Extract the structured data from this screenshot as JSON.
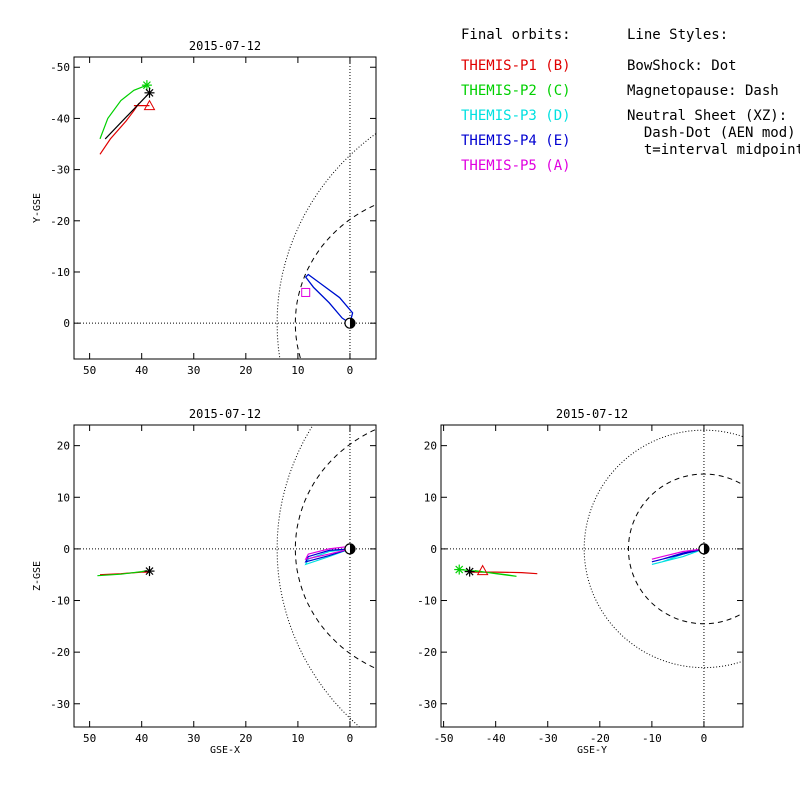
{
  "legend": {
    "orbits_title": "Final orbits:",
    "styles_title": "Line Styles:",
    "probes": [
      {
        "label": "THEMIS-P1 (B)",
        "color": "#e00000"
      },
      {
        "label": "THEMIS-P2 (C)",
        "color": "#00d000"
      },
      {
        "label": "THEMIS-P3 (D)",
        "color": "#00e0e0"
      },
      {
        "label": "THEMIS-P4 (E)",
        "color": "#0000d0"
      },
      {
        "label": "THEMIS-P5 (A)",
        "color": "#e000e0"
      }
    ],
    "styles": [
      "BowShock: Dot",
      "Magnetopause: Dash",
      "Neutral Sheet (XZ):",
      "  Dash-Dot (AEN mod)",
      "  t=interval midpoint"
    ]
  },
  "chart_data": [
    {
      "type": "scatter",
      "panel": "XY",
      "title": "2015-07-12",
      "xlabel": "",
      "ylabel": "Y-GSE",
      "xlim": [
        53,
        -5
      ],
      "ylim": [
        7,
        -52
      ],
      "xticks": [
        50,
        40,
        30,
        20,
        10,
        0
      ],
      "yticks": [
        0,
        -10,
        -20,
        -30,
        -40,
        -50
      ],
      "series": [
        {
          "name": "THEMIS-P1 (B)",
          "color": "#e00000",
          "x": [
            48,
            46,
            43,
            41.5,
            40.5
          ],
          "y": [
            -33,
            -36,
            -39.5,
            -41.5,
            -43
          ]
        },
        {
          "name": "THEMIS-P2 (C)",
          "color": "#00d000",
          "x": [
            48,
            46.5,
            44,
            41.5,
            39
          ],
          "y": [
            -36,
            -40,
            -43.5,
            -45.5,
            -46.5
          ]
        },
        {
          "name": "THEMIS-P1 end",
          "color": "#e00000",
          "x": [
            39.5,
            41.5,
            38.5
          ],
          "y": [
            -42.5,
            -42.5,
            -42.5
          ]
        },
        {
          "name": "THEMIS-P3 (D)",
          "color": "#00e0e0",
          "x": [
            0,
            1.5,
            4,
            7,
            8.5,
            8,
            6,
            2,
            -0.5,
            0
          ],
          "y": [
            0,
            -1,
            -4,
            -7,
            -9,
            -9.5,
            -8,
            -5,
            -2,
            0
          ]
        },
        {
          "name": "THEMIS-P4 (E)",
          "color": "#0000d0",
          "x": [
            0,
            1.5,
            4,
            7,
            8.5,
            8,
            6,
            2,
            -0.5,
            0
          ],
          "y": [
            0,
            -1,
            -4,
            -7,
            -9,
            -9.5,
            -8,
            -5,
            -2,
            0
          ]
        },
        {
          "name": "THEMIS-P5 (A)",
          "color": "#e000e0",
          "x": [
            8.5
          ],
          "y": [
            -6
          ]
        },
        {
          "name": "sun-direction",
          "color": "#000000",
          "x": [
            38.5,
            47
          ],
          "y": [
            -45,
            -36
          ]
        }
      ]
    },
    {
      "type": "scatter",
      "panel": "XZ",
      "title": "2015-07-12",
      "xlabel": "GSE-X",
      "ylabel": "Z-GSE",
      "xlim": [
        53,
        -5
      ],
      "ylim": [
        -34.5,
        24
      ],
      "xticks": [
        50,
        40,
        30,
        20,
        10,
        0
      ],
      "yticks": [
        20,
        10,
        0,
        -10,
        -20,
        -30
      ],
      "series": [
        {
          "name": "THEMIS-P1 (B)",
          "color": "#e00000",
          "x": [
            48,
            44,
            40,
            38.5
          ],
          "y": [
            -5,
            -4.8,
            -4.5,
            -4.5
          ]
        },
        {
          "name": "THEMIS-P2 (C)",
          "color": "#00d000",
          "x": [
            48.5,
            44,
            40,
            39
          ],
          "y": [
            -5.2,
            -4.9,
            -4.4,
            -4.2
          ]
        },
        {
          "name": "THEMIS-P3 (D)",
          "color": "#00e0e0",
          "x": [
            0,
            4,
            8.5,
            8,
            4,
            0
          ],
          "y": [
            0,
            -1.5,
            -3,
            -2,
            -0.5,
            0
          ]
        },
        {
          "name": "THEMIS-P4 (E)",
          "color": "#0000d0",
          "x": [
            0,
            4,
            8.5,
            8,
            4,
            0
          ],
          "y": [
            0,
            -1.3,
            -2.5,
            -1.5,
            -0.3,
            0
          ]
        },
        {
          "name": "THEMIS-P5 (A)",
          "color": "#e000e0",
          "x": [
            0,
            4,
            8.5,
            8,
            4,
            0
          ],
          "y": [
            0,
            -1,
            -2,
            -1,
            0,
            0.5
          ]
        }
      ]
    },
    {
      "type": "scatter",
      "panel": "YZ",
      "title": "2015-07-12",
      "xlabel": "GSE-Y",
      "ylabel": "",
      "xlim": [
        -50.5,
        7.5
      ],
      "ylim": [
        -34.5,
        24
      ],
      "xticks": [
        -50,
        -40,
        -30,
        -20,
        -10,
        0
      ],
      "yticks": [
        20,
        10,
        0,
        -10,
        -20,
        -30
      ],
      "series": [
        {
          "name": "THEMIS-P1 (B)",
          "color": "#e00000",
          "x": [
            -45,
            -40,
            -35,
            -32
          ],
          "y": [
            -4.5,
            -4.5,
            -4.6,
            -4.8
          ]
        },
        {
          "name": "THEMIS-P2 (C)",
          "color": "#00d000",
          "x": [
            -47,
            -42,
            -38,
            -36,
            -40,
            -44
          ],
          "y": [
            -4,
            -4.5,
            -5,
            -5.3,
            -4.8,
            -4.2
          ]
        },
        {
          "name": "THEMIS-P3 (D)",
          "color": "#00e0e0",
          "x": [
            0,
            -4,
            -8,
            -10,
            -8,
            -4,
            0
          ],
          "y": [
            0,
            -1,
            -2.5,
            -3,
            -2.5,
            -1.5,
            0
          ]
        },
        {
          "name": "THEMIS-P4 (E)",
          "color": "#0000d0",
          "x": [
            0,
            -4,
            -8,
            -10,
            -8,
            -4,
            0
          ],
          "y": [
            0,
            -0.8,
            -2,
            -2.5,
            -2,
            -1,
            0
          ]
        },
        {
          "name": "THEMIS-P5 (A)",
          "color": "#e000e0",
          "x": [
            0,
            -4,
            -8,
            -10,
            -8,
            -4,
            0
          ],
          "y": [
            0,
            -0.5,
            -1.5,
            -2,
            -1.5,
            -0.5,
            0
          ]
        }
      ]
    }
  ]
}
